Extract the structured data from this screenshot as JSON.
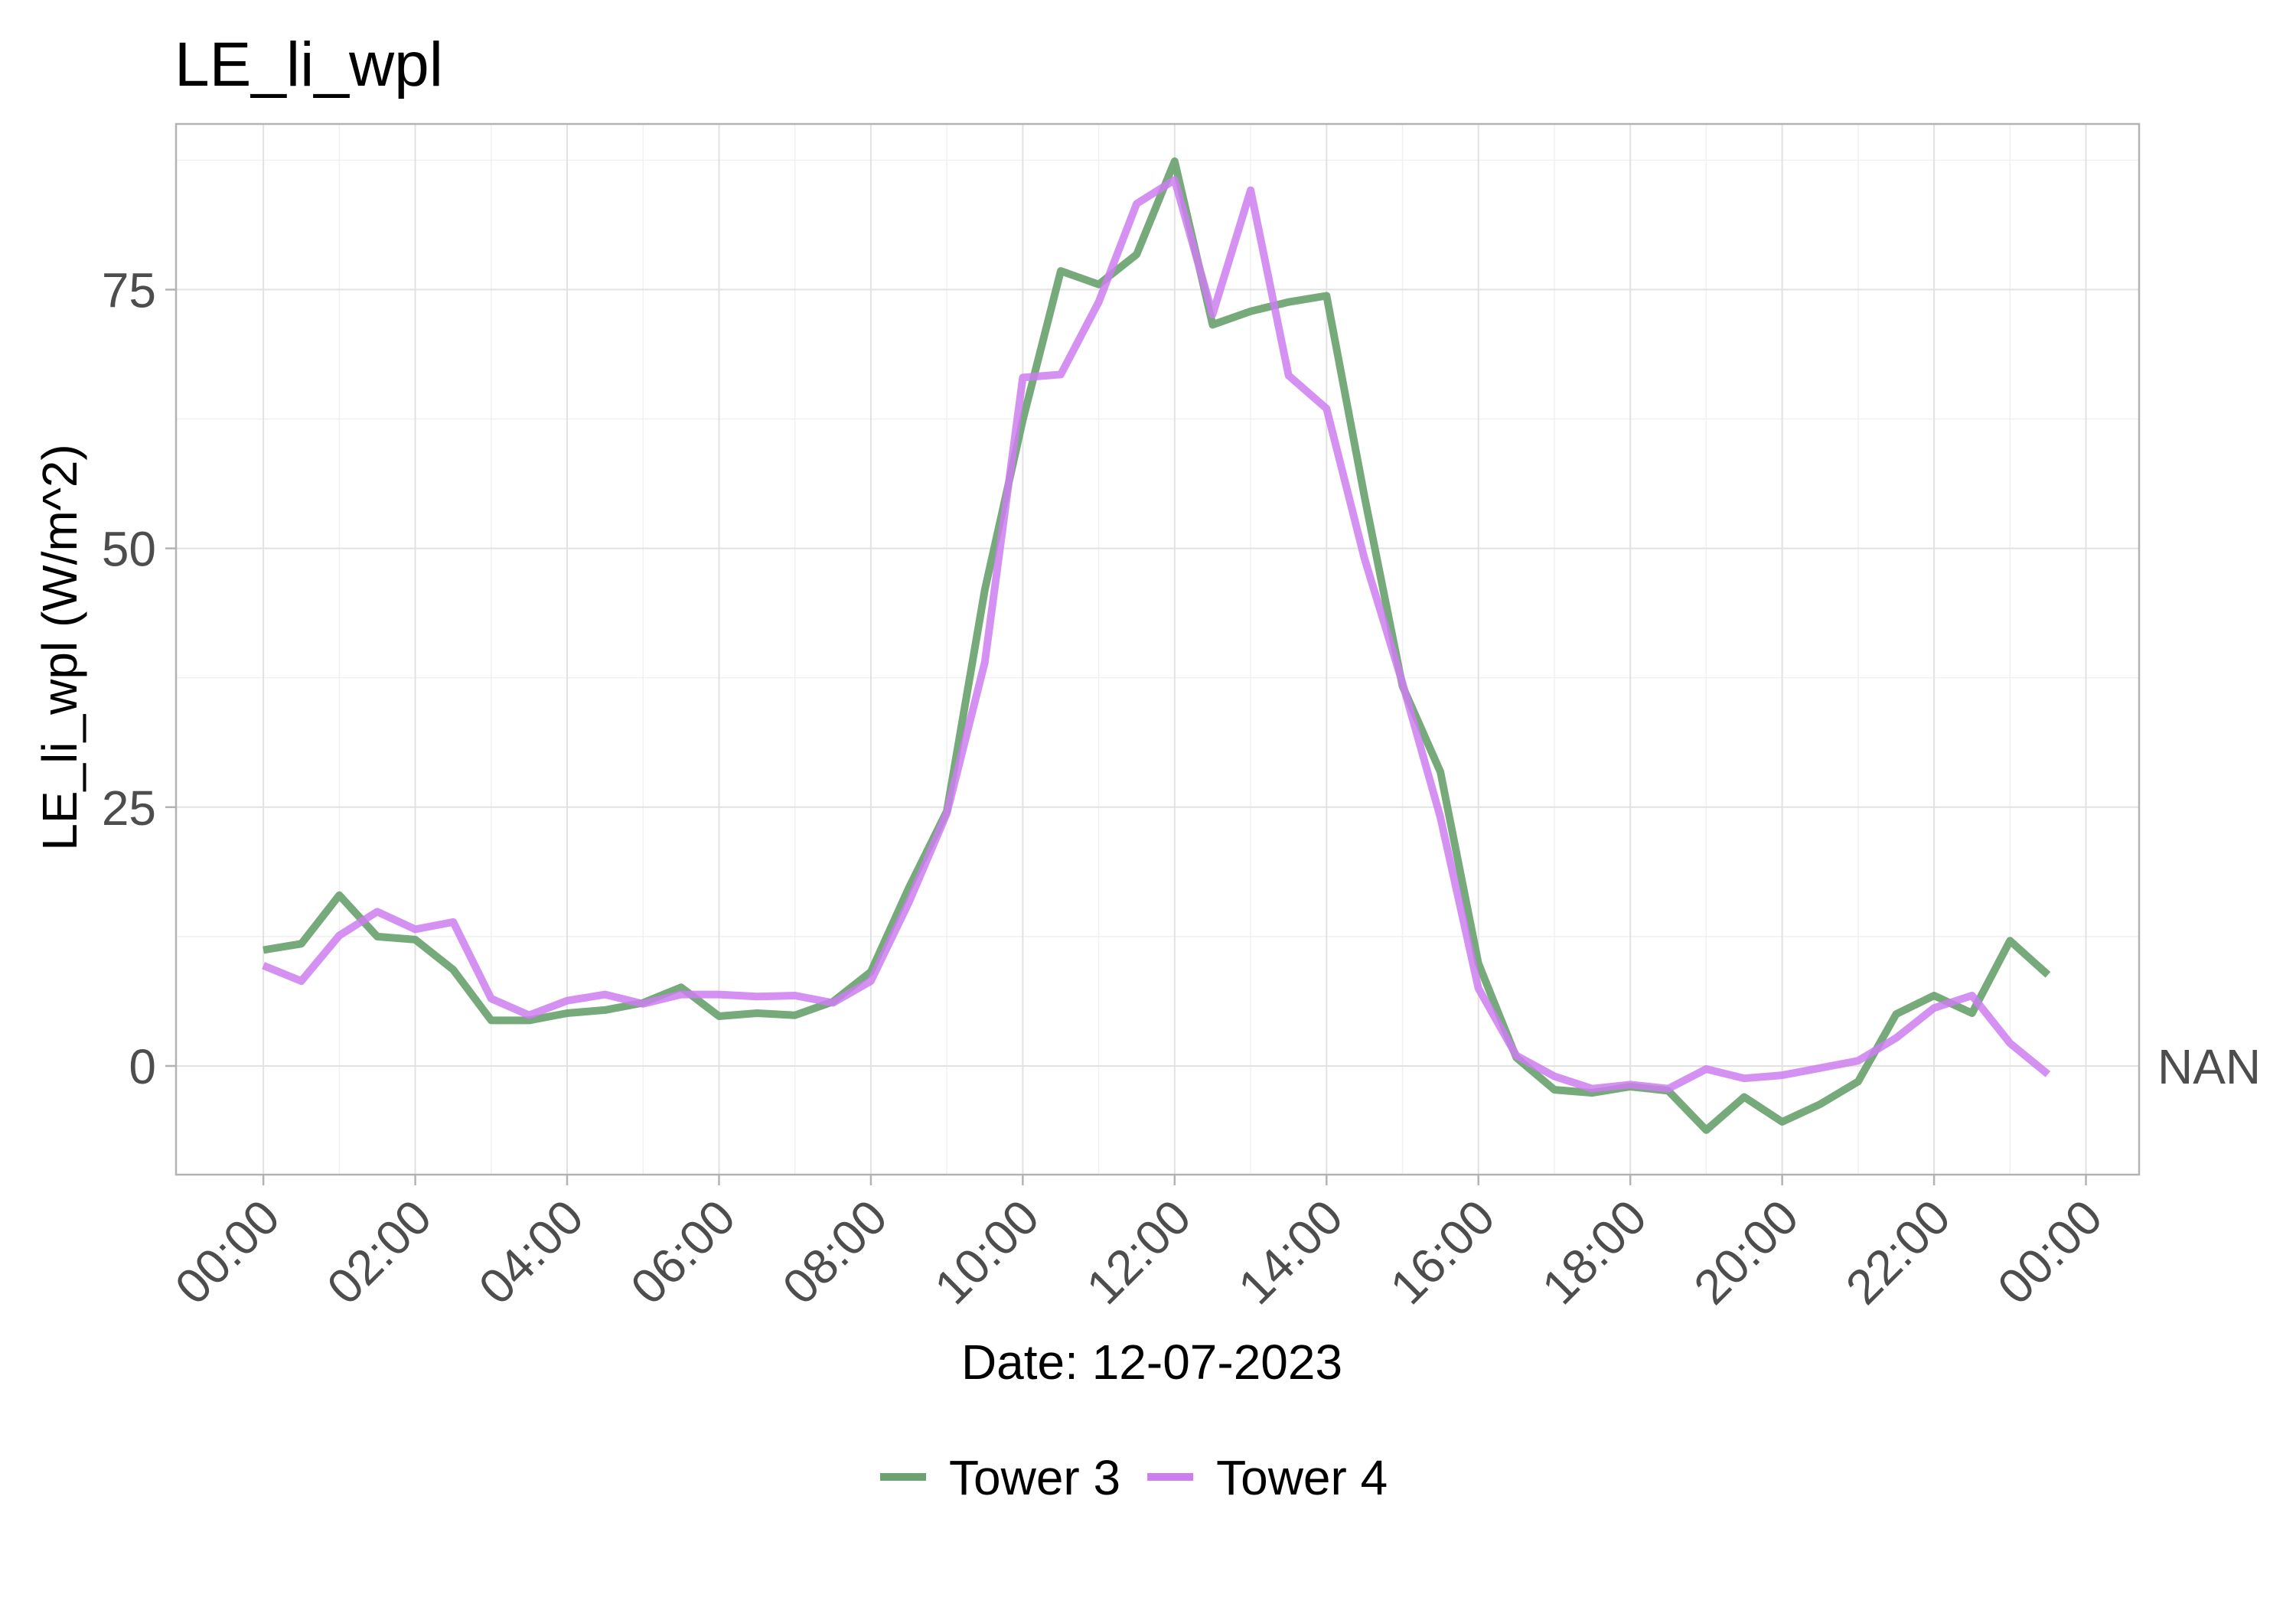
{
  "chart_data": {
    "type": "line",
    "title": "LE_li_wpl",
    "xlabel": "Date: 12-07-2023",
    "ylabel": "LE_li_wpl (W/m^2)",
    "x_ticks": [
      "00:00",
      "02:00",
      "04:00",
      "06:00",
      "08:00",
      "10:00",
      "12:00",
      "14:00",
      "16:00",
      "18:00",
      "20:00",
      "22:00",
      "00:00"
    ],
    "x_tick_hours": [
      0,
      2,
      4,
      6,
      8,
      10,
      12,
      14,
      16,
      18,
      20,
      22,
      24
    ],
    "xlim_hours": [
      -1.15,
      24.7
    ],
    "y_ticks": [
      0,
      25,
      50,
      75
    ],
    "ylim": [
      -10.5,
      91
    ],
    "grid": true,
    "legend_position": "bottom",
    "nan_label": "NAN",
    "nan_value": 0,
    "x_hours": [
      0,
      0.5,
      1,
      1.5,
      2,
      2.5,
      3,
      3.5,
      4,
      4.5,
      5,
      5.5,
      6,
      6.5,
      7,
      7.5,
      8,
      8.5,
      9,
      9.5,
      10,
      10.5,
      11,
      11.5,
      12,
      12.5,
      13,
      13.5,
      14,
      14.5,
      15,
      15.5,
      16,
      16.5,
      17,
      17.5,
      18,
      18.5,
      19,
      19.5,
      20,
      20.5,
      21,
      21.5,
      22,
      22.5,
      23,
      23.5
    ],
    "series": [
      {
        "name": "Tower 3",
        "color": "#6aa36f",
        "values": [
          11.2,
          11.8,
          16.5,
          12.5,
          12.2,
          9.3,
          4.4,
          4.4,
          5.1,
          5.4,
          6.1,
          7.6,
          4.8,
          5.1,
          4.9,
          6.2,
          9.1,
          17.2,
          24.6,
          46.0,
          62.4,
          76.8,
          75.5,
          78.4,
          87.4,
          71.6,
          72.9,
          73.8,
          74.4,
          55.0,
          36.7,
          28.4,
          9.9,
          0.8,
          -2.3,
          -2.6,
          -2.0,
          -2.4,
          -6.2,
          -3.0,
          -5.4,
          -3.7,
          -1.5,
          5.0,
          6.8,
          5.1,
          12.1,
          8.8
        ]
      },
      {
        "name": "Tower 4",
        "color": "#cc7ef0",
        "values": [
          9.7,
          8.2,
          12.6,
          14.9,
          13.2,
          13.9,
          6.5,
          4.9,
          6.3,
          6.9,
          6.0,
          6.9,
          6.9,
          6.7,
          6.8,
          6.1,
          8.2,
          15.8,
          24.4,
          39.0,
          66.5,
          66.8,
          73.8,
          83.3,
          85.6,
          72.6,
          84.6,
          66.7,
          63.5,
          49.0,
          37.0,
          24.0,
          7.5,
          1.0,
          -1.0,
          -2.2,
          -1.8,
          -2.2,
          -0.3,
          -1.2,
          -0.9,
          -0.2,
          0.5,
          2.7,
          5.6,
          6.8,
          2.2,
          -0.8
        ]
      }
    ]
  }
}
